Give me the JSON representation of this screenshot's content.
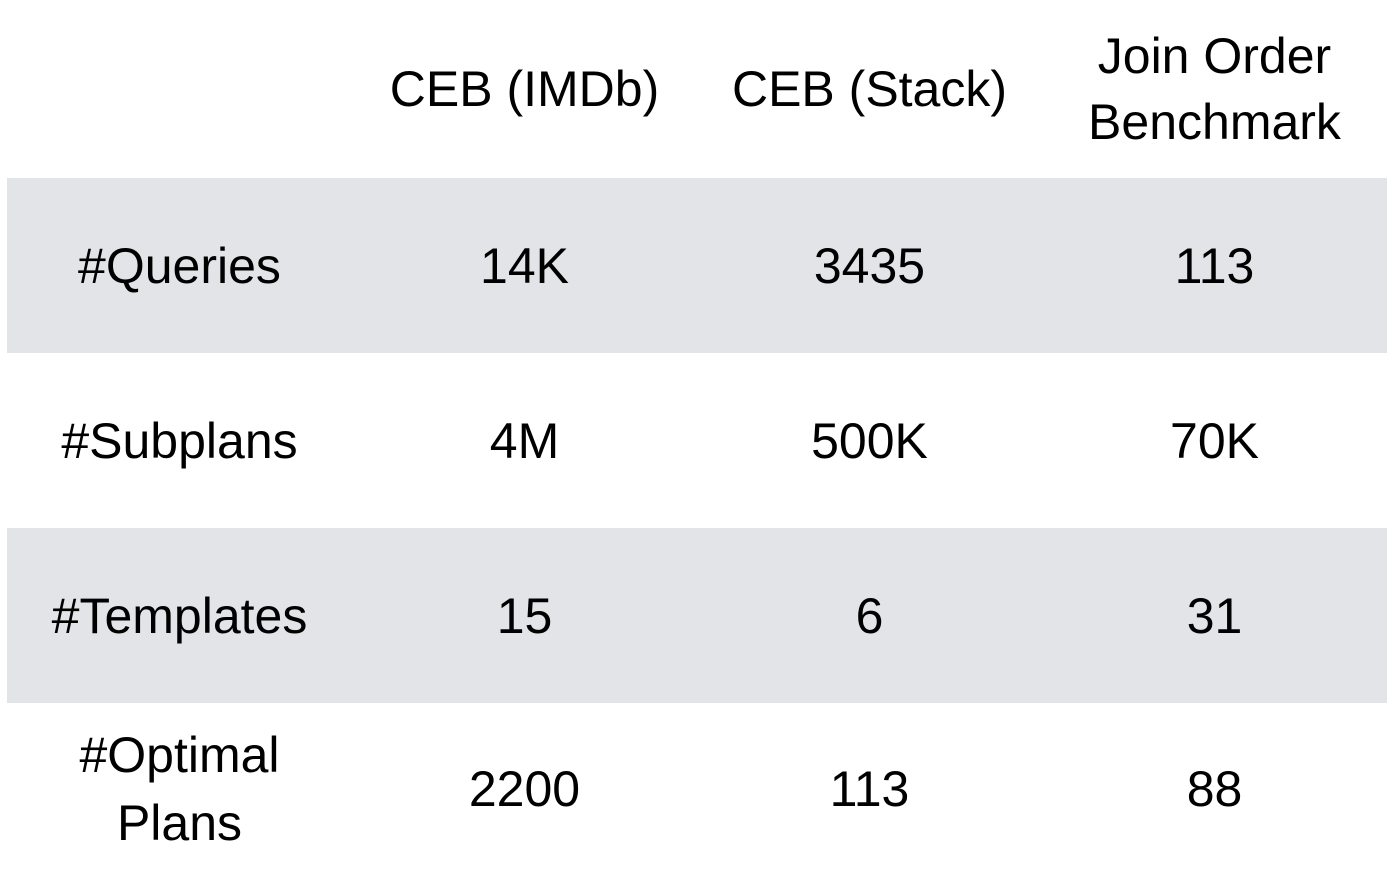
{
  "table": {
    "headers": [
      "",
      "CEB (IMDb)",
      "CEB (Stack)",
      "Join Order\nBenchmark"
    ],
    "rows": [
      {
        "label": "#Queries",
        "values": [
          "14K",
          "3435",
          "113"
        ]
      },
      {
        "label": "#Subplans",
        "values": [
          "4M",
          "500K",
          "70K"
        ]
      },
      {
        "label": "#Templates",
        "values": [
          "15",
          "6",
          "31"
        ]
      },
      {
        "label": "#Optimal\nPlans",
        "values": [
          "2200",
          "113",
          "88"
        ]
      }
    ],
    "stripe_color": "#e3e4e7"
  }
}
